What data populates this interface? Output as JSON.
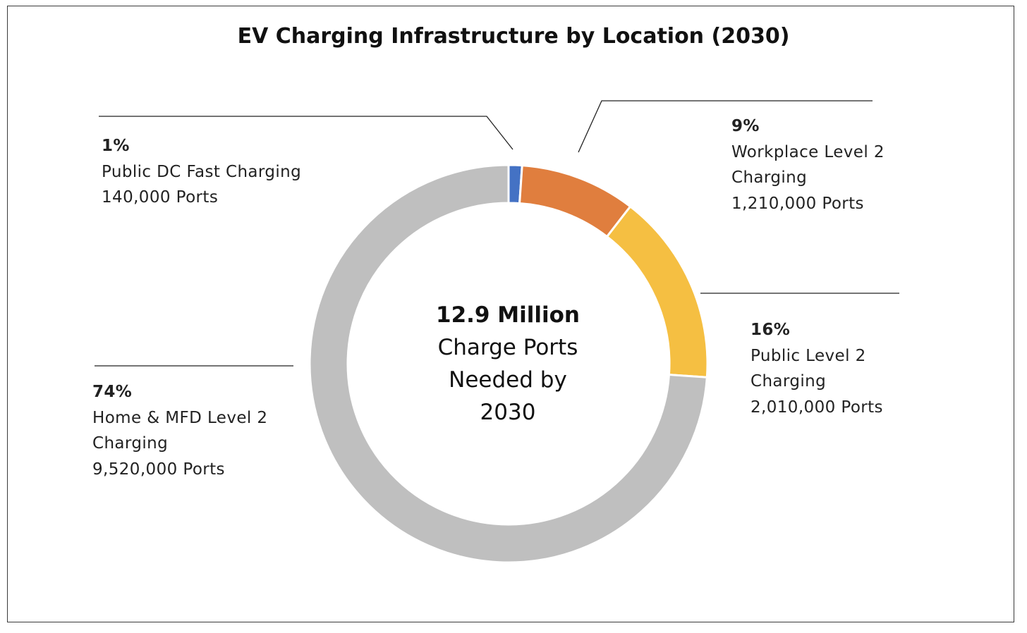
{
  "chart_data": {
    "type": "pie",
    "title": "EV Charging Infrastructure by Location (2030)",
    "center": {
      "value": "12.9 Million",
      "caption": "Charge Ports\nNeeded by\n2030"
    },
    "slices": [
      {
        "category": "Public DC Fast Charging",
        "percent_label": "1%",
        "ports_label": "140,000 Ports",
        "ports": 140000,
        "color": "#4472C4"
      },
      {
        "category": "Workplace Level 2 Charging",
        "percent_label": "9%",
        "ports_label": "1,210,000 Ports",
        "ports": 1210000,
        "color": "#E07E3E"
      },
      {
        "category": "Public Level 2 Charging",
        "percent_label": "16%",
        "ports_label": "2,010,000 Ports",
        "ports": 2010000,
        "color": "#F5BF42"
      },
      {
        "category": "Home & MFD Level 2 Charging",
        "percent_label": "74%",
        "ports_label": "9,520,000 Ports",
        "ports": 9520000,
        "color": "#BFBFBF"
      }
    ],
    "legend": "none"
  }
}
